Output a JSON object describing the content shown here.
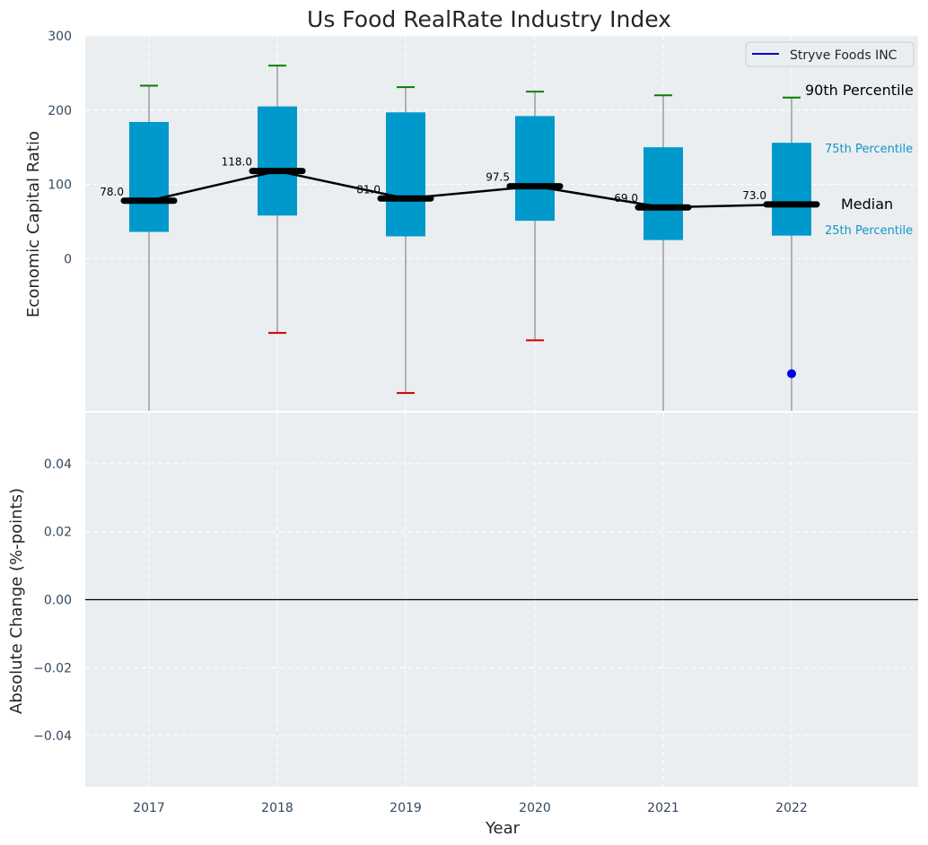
{
  "chart_data": [
    {
      "type": "box",
      "title": "Us Food RealRate Industry Index",
      "ylabel": "Economic Capital Ratio",
      "ylim": [
        -205,
        300
      ],
      "yticks": [
        0,
        100,
        200,
        300
      ],
      "grid": true,
      "legend": {
        "position": "top-right",
        "entries": [
          {
            "label": "Stryve Foods INC",
            "color": "#0000cc"
          }
        ]
      },
      "categories": [
        "2017",
        "2018",
        "2019",
        "2020",
        "2021",
        "2022"
      ],
      "boxes": [
        {
          "year": "2017",
          "q1": 36,
          "q3": 184,
          "median": 78.0,
          "median_label": "78.0",
          "p90": 233,
          "p10": null,
          "whisker_low_clipped": true
        },
        {
          "year": "2018",
          "q1": 58,
          "q3": 205,
          "median": 118.0,
          "median_label": "118.0",
          "p90": 260,
          "p10": -100,
          "whisker_low_clipped": false
        },
        {
          "year": "2019",
          "q1": 30,
          "q3": 197,
          "median": 81.0,
          "median_label": "81.0",
          "p90": 231,
          "p10": -181,
          "whisker_low_clipped": false
        },
        {
          "year": "2020",
          "q1": 51,
          "q3": 192,
          "median": 97.5,
          "median_label": "97.5",
          "p90": 225,
          "p10": -110,
          "whisker_low_clipped": false
        },
        {
          "year": "2021",
          "q1": 25,
          "q3": 150,
          "median": 69.0,
          "median_label": "69.0",
          "p90": 220,
          "p10": null,
          "whisker_low_clipped": true
        },
        {
          "year": "2022",
          "q1": 31,
          "q3": 156,
          "median": 73.0,
          "median_label": "73.0",
          "p90": 217,
          "p10": null,
          "whisker_low_clipped": true
        }
      ],
      "company_points": [
        {
          "year": "2022",
          "value": -155
        }
      ],
      "annotations": {
        "p90": "90th Percentile",
        "p75": "75th Percentile",
        "median": "Median",
        "p25": "25th Percentile"
      },
      "colors": {
        "box": "#0099cc",
        "median": "#000000",
        "whisker_high": "#008000",
        "whisker_low": "#cc0000",
        "company": "#0000ee",
        "legend_line": "#0000cc",
        "plot_bg": "#eaeef0"
      }
    },
    {
      "type": "line",
      "xlabel": "Year",
      "ylabel": "Absolute Change (%-points)",
      "ylim": [
        -0.055,
        0.055
      ],
      "yticks": [
        -0.04,
        -0.02,
        0.0,
        0.02,
        0.04
      ],
      "ytick_labels": [
        "−0.04",
        "−0.02",
        "0.00",
        "0.02",
        "0.04"
      ],
      "categories": [
        "2017",
        "2018",
        "2019",
        "2020",
        "2021",
        "2022"
      ],
      "zero_line": 0.0,
      "grid": true,
      "series": []
    }
  ]
}
